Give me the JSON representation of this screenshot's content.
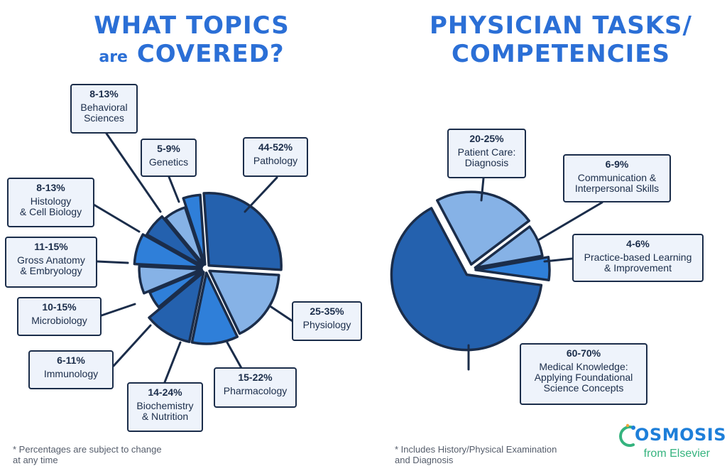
{
  "titles": {
    "left_line1": "WHAT TOPICS",
    "left_are": "are",
    "left_covered": "COVERED?",
    "right_line1": "PHYSICIAN TASKS/",
    "right_line2": "COMPETENCIES"
  },
  "footnotes": {
    "left": "* Percentages are subject to change\n  at any time",
    "right": "* Includes History/Physical Examination\n  and Diagnosis"
  },
  "logo": {
    "brand": "OSMOSIS",
    "sub": "from Elsevier"
  },
  "colors": {
    "dark": "#2461ae",
    "medium": "#2f7fd9",
    "light": "#86b2e6",
    "outline": "#1b2d4a",
    "label_bg": "#eef3fb"
  },
  "chart_data": [
    {
      "type": "pie",
      "title": "WHAT TOPICS are COVERED?",
      "exploded": true,
      "slices": [
        {
          "key": "pathology",
          "range": "44-52%",
          "label": "Pathology",
          "value": 48,
          "color": "dark"
        },
        {
          "key": "physiology",
          "range": "25-35%",
          "label": "Physiology",
          "value": 30,
          "color": "light"
        },
        {
          "key": "pharmacology",
          "range": "15-22%",
          "label": "Pharmacology",
          "value": 18.5,
          "color": "medium"
        },
        {
          "key": "biochemistry",
          "range": "14-24%",
          "label": "Biochemistry\n& Nutrition",
          "value": 19,
          "color": "dark"
        },
        {
          "key": "immunology",
          "range": "6-11%",
          "label": "Immunology",
          "value": 8.5,
          "color": "medium"
        },
        {
          "key": "microbiology",
          "range": "10-15%",
          "label": "Microbiology",
          "value": 12.5,
          "color": "light"
        },
        {
          "key": "gross_anatomy",
          "range": "11-15%",
          "label": "Gross Anatomy\n& Embryology",
          "value": 13,
          "color": "medium"
        },
        {
          "key": "histology",
          "range": "8-13%",
          "label": "Histology\n& Cell Biology",
          "value": 10.5,
          "color": "dark"
        },
        {
          "key": "behavioral",
          "range": "8-13%",
          "label": "Behavioral\nSciences",
          "value": 10.5,
          "color": "light"
        },
        {
          "key": "genetics",
          "range": "5-9%",
          "label": "Genetics",
          "value": 7,
          "color": "medium"
        }
      ]
    },
    {
      "type": "pie",
      "title": "PHYSICIAN TASKS/ COMPETENCIES",
      "exploded": true,
      "slices": [
        {
          "key": "patient_care",
          "range": "20-25%",
          "label": "Patient Care:\nDiagnosis",
          "value": 22.5,
          "color": "light"
        },
        {
          "key": "communication",
          "range": "6-9%",
          "label": "Communication &\nInterpersonal Skills",
          "value": 7.5,
          "color": "light"
        },
        {
          "key": "practice_based",
          "range": "4-6%",
          "label": "Practice-based Learning\n& Improvement",
          "value": 5,
          "color": "medium"
        },
        {
          "key": "medical_knowledge",
          "range": "60-70%",
          "label": "Medical Knowledge:\nApplying Foundational\nScience Concepts",
          "value": 65,
          "color": "dark"
        }
      ]
    }
  ]
}
